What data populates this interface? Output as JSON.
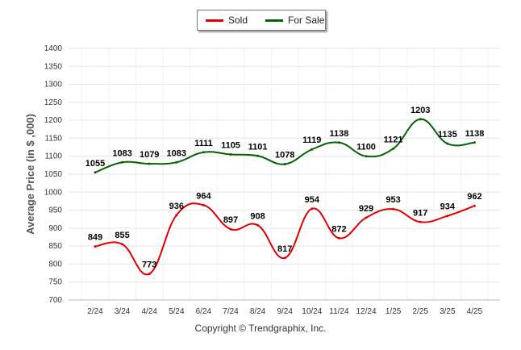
{
  "chart_data": {
    "type": "line",
    "categories": [
      "2/24",
      "3/24",
      "4/24",
      "5/24",
      "6/24",
      "7/24",
      "8/24",
      "9/24",
      "10/24",
      "11/24",
      "12/24",
      "1/25",
      "2/25",
      "3/25",
      "4/25"
    ],
    "series": [
      {
        "name": "Sold",
        "color": "#e00000",
        "values": [
          849,
          855,
          773,
          936,
          964,
          897,
          908,
          817,
          954,
          872,
          929,
          953,
          917,
          934,
          962
        ]
      },
      {
        "name": "For Sale",
        "color": "#006400",
        "values": [
          1055,
          1083,
          1079,
          1083,
          1111,
          1105,
          1101,
          1078,
          1119,
          1138,
          1100,
          1121,
          1203,
          1135,
          1138
        ]
      }
    ],
    "title": "",
    "xlabel": "",
    "ylabel": "Average Price (in $ ,000)",
    "ylim": [
      700,
      1400
    ],
    "yticks": [
      700,
      750,
      800,
      850,
      900,
      950,
      1000,
      1050,
      1100,
      1150,
      1200,
      1250,
      1300,
      1350,
      1400
    ],
    "grid": true,
    "legend_position": "top-center"
  },
  "footer": "Copyright © Trendgraphix, Inc."
}
